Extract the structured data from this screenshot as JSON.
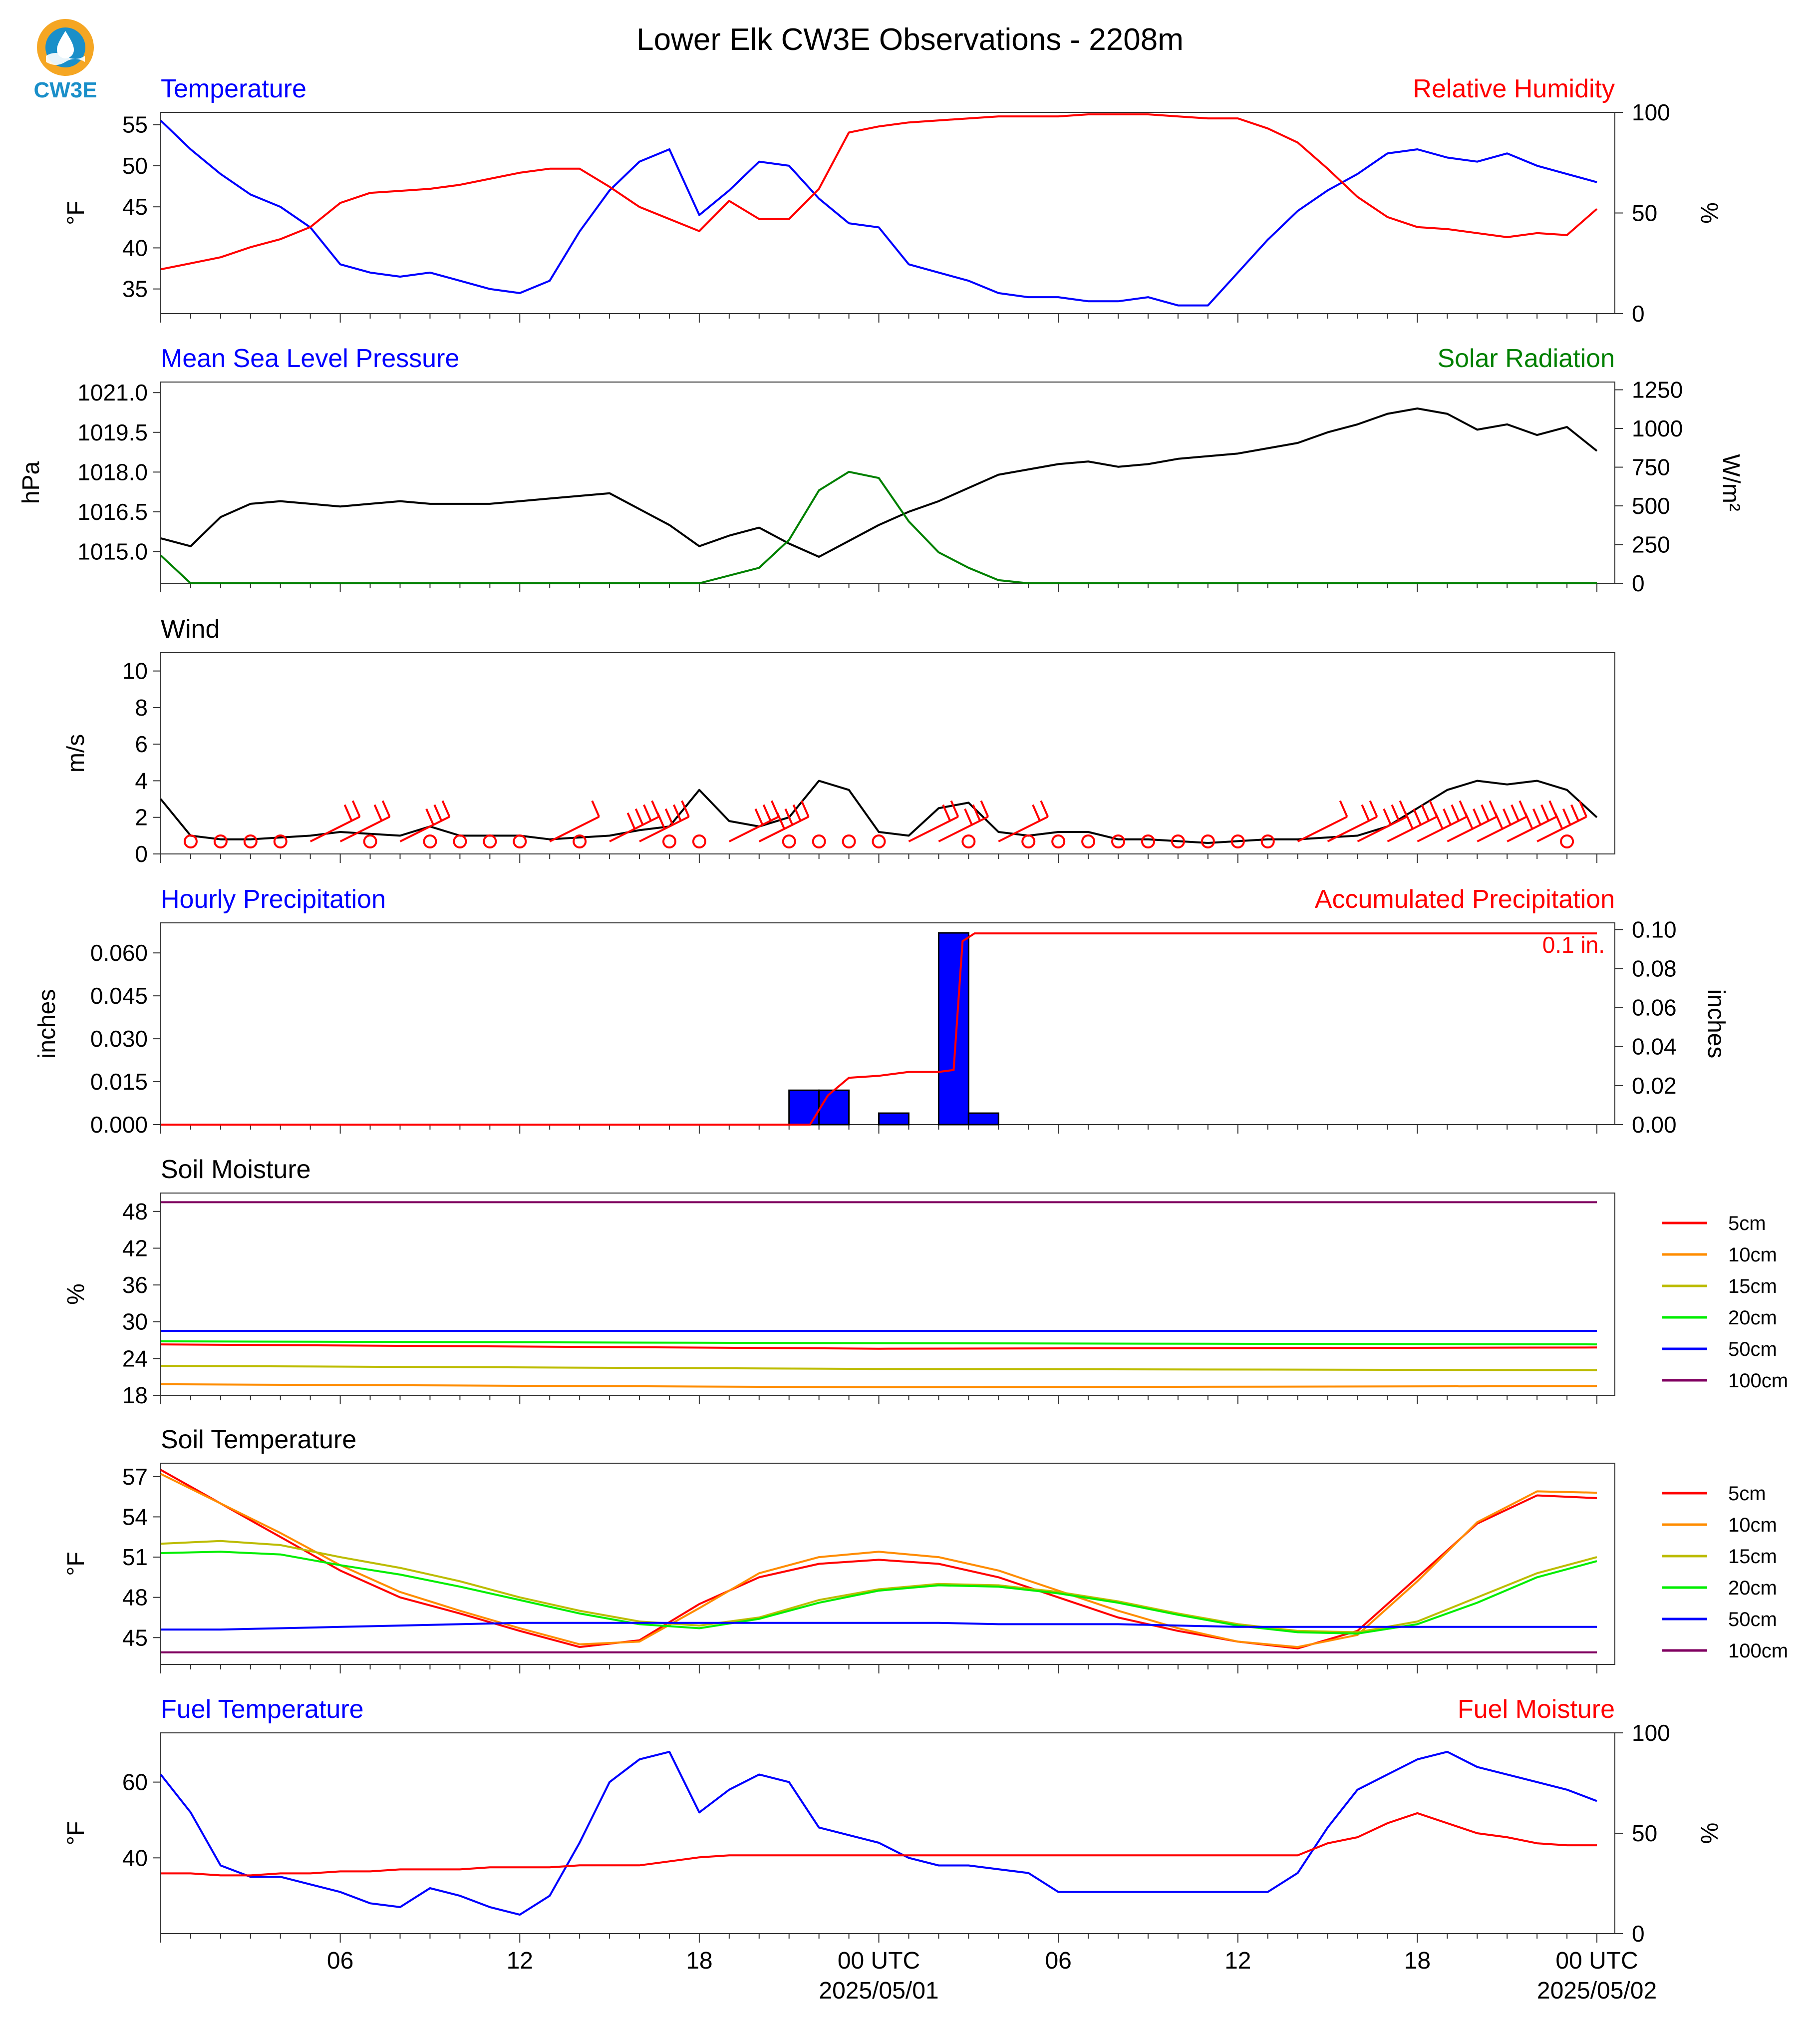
{
  "title": "Lower Elk CW3E Observations - 2208m",
  "logo": {
    "text": "CW3E",
    "color": "#1a8fc9",
    "accent": "#f5a623"
  },
  "time_axis": {
    "ticks": [
      "06",
      "12",
      "18",
      "00 UTC",
      "06",
      "12",
      "18",
      "00 UTC"
    ],
    "dates": [
      "2025/05/01",
      "2025/05/02"
    ]
  },
  "chart_data": [
    {
      "type": "line",
      "panel": "temperature-humidity",
      "left_title": "Temperature",
      "right_title": "Relative Humidity",
      "ylabel": "°F",
      "y2label": "%",
      "ylim": [
        32,
        56.5
      ],
      "y2lim": [
        0,
        100
      ],
      "yticks": [
        "35",
        "40",
        "45",
        "50",
        "55"
      ],
      "y2ticks": [
        "0",
        "50",
        "100"
      ],
      "x_hours": [
        0,
        1,
        2,
        3,
        4,
        5,
        6,
        7,
        8,
        9,
        10,
        11,
        12,
        13,
        14,
        15,
        16,
        17,
        18,
        19,
        20,
        21,
        22,
        23,
        24,
        25,
        26,
        27,
        28,
        29,
        30,
        31,
        32,
        33,
        34,
        35,
        36,
        37,
        38,
        39,
        40,
        41,
        42,
        43,
        44,
        45,
        46,
        47,
        48
      ],
      "series": [
        {
          "name": "Temperature",
          "axis": "left",
          "color": "#0000ff",
          "values": [
            55.5,
            52,
            49,
            46.5,
            45,
            42.5,
            38,
            37,
            36.5,
            37,
            36,
            35,
            34.5,
            36,
            42,
            47,
            50.5,
            52,
            44,
            47,
            50.5,
            50,
            46,
            43,
            42.5,
            38,
            37,
            36,
            34.5,
            34,
            34,
            33.5,
            33.5,
            34,
            33,
            33,
            37,
            41,
            44.5,
            47,
            49,
            51.5,
            52,
            51,
            50.5,
            51.5,
            50,
            49,
            48
          ]
        },
        {
          "name": "Relative Humidity",
          "axis": "right",
          "color": "#ff0000",
          "values": [
            22,
            25,
            28,
            33,
            37,
            43,
            55,
            60,
            61,
            62,
            64,
            67,
            70,
            72,
            72,
            63,
            53,
            47,
            41,
            56,
            47,
            47,
            62,
            90,
            93,
            95,
            96,
            97,
            98,
            98,
            98,
            99,
            99,
            99,
            98,
            97,
            97,
            92,
            85,
            72,
            58,
            48,
            43,
            42,
            40,
            38,
            40,
            39,
            52
          ]
        }
      ]
    },
    {
      "type": "line",
      "panel": "pressure-radiation",
      "left_title": "Mean Sea Level Pressure",
      "right_title": "Solar Radiation",
      "ylabel": "hPa",
      "y2label": "W/m²",
      "ylim": [
        1013.8,
        1021.4
      ],
      "y2lim": [
        0,
        1300
      ],
      "yticks": [
        "1015.0",
        "1016.5",
        "1018.0",
        "1019.5",
        "1021.0"
      ],
      "y2ticks": [
        "0",
        "250",
        "500",
        "750",
        "1000",
        "1250"
      ],
      "x_hours": [
        0,
        1,
        2,
        3,
        4,
        5,
        6,
        7,
        8,
        9,
        10,
        11,
        12,
        13,
        14,
        15,
        16,
        17,
        18,
        19,
        20,
        21,
        22,
        23,
        24,
        25,
        26,
        27,
        28,
        29,
        30,
        31,
        32,
        33,
        34,
        35,
        36,
        37,
        38,
        39,
        40,
        41,
        42,
        43,
        44,
        45,
        46,
        47,
        48
      ],
      "series": [
        {
          "name": "Mean Sea Level Pressure",
          "axis": "left",
          "color": "#000000",
          "values": [
            1015.5,
            1015.2,
            1016.3,
            1016.8,
            1016.9,
            1016.8,
            1016.7,
            1016.8,
            1016.9,
            1016.8,
            1016.8,
            1016.8,
            1016.9,
            1017.0,
            1017.1,
            1017.2,
            1016.6,
            1016.0,
            1015.2,
            1015.6,
            1015.9,
            1015.3,
            1014.8,
            1015.4,
            1016.0,
            1016.5,
            1016.9,
            1017.4,
            1017.9,
            1018.1,
            1018.3,
            1018.4,
            1018.2,
            1018.3,
            1018.5,
            1018.6,
            1018.7,
            1018.9,
            1019.1,
            1019.5,
            1019.8,
            1020.2,
            1020.4,
            1020.2,
            1019.6,
            1019.8,
            1019.4,
            1019.7,
            1018.8
          ]
        },
        {
          "name": "Solar Radiation",
          "axis": "right",
          "color": "#008000",
          "values": [
            180,
            0,
            0,
            0,
            0,
            0,
            0,
            0,
            0,
            0,
            0,
            0,
            0,
            0,
            0,
            0,
            0,
            0,
            0,
            50,
            100,
            280,
            600,
            720,
            680,
            400,
            200,
            100,
            20,
            0,
            0,
            0,
            0,
            0,
            0,
            0,
            0,
            0,
            0,
            0,
            0,
            0,
            0,
            0,
            0,
            0,
            0,
            0,
            0
          ]
        }
      ]
    },
    {
      "type": "line",
      "panel": "wind",
      "left_title": "Wind",
      "ylabel": "m/s",
      "ylim": [
        0,
        11
      ],
      "yticks": [
        "0",
        "2",
        "4",
        "6",
        "8",
        "10"
      ],
      "x_hours": [
        0,
        1,
        2,
        3,
        4,
        5,
        6,
        7,
        8,
        9,
        10,
        11,
        12,
        13,
        14,
        15,
        16,
        17,
        18,
        19,
        20,
        21,
        22,
        23,
        24,
        25,
        26,
        27,
        28,
        29,
        30,
        31,
        32,
        33,
        34,
        35,
        36,
        37,
        38,
        39,
        40,
        41,
        42,
        43,
        44,
        45,
        46,
        47,
        48
      ],
      "series": [
        {
          "name": "Wind Speed",
          "color": "#000000",
          "values": [
            3,
            1,
            0.8,
            0.8,
            0.9,
            1,
            1.2,
            1.1,
            1,
            1.5,
            1,
            1,
            1,
            0.8,
            0.9,
            1,
            1.3,
            1.5,
            3.5,
            1.8,
            1.5,
            2,
            4,
            3.5,
            1.2,
            1,
            2.5,
            2.8,
            1.2,
            1,
            1.2,
            1.2,
            0.8,
            0.8,
            0.7,
            0.6,
            0.7,
            0.8,
            0.8,
            0.9,
            1,
            1.5,
            2.5,
            3.5,
            4,
            3.8,
            4,
            3.5,
            2
          ]
        }
      ],
      "barbs": {
        "color": "#ff0000",
        "x_hours": [
          1,
          2,
          3,
          4,
          5,
          6,
          7,
          8,
          9,
          10,
          11,
          12,
          13,
          14,
          15,
          16,
          17,
          18,
          19,
          20,
          21,
          22,
          23,
          24,
          25,
          26,
          27,
          28,
          29,
          30,
          31,
          32,
          33,
          34,
          35,
          36,
          37,
          38,
          39,
          40,
          41,
          42,
          43,
          44,
          45,
          46,
          47
        ],
        "speeds": [
          0,
          0,
          0,
          0,
          2,
          2,
          0,
          3,
          0,
          0,
          0,
          0,
          1,
          0,
          4,
          5,
          0,
          0,
          3,
          4,
          0,
          0,
          0,
          0,
          2,
          3,
          0,
          2,
          0,
          0,
          0,
          0,
          0,
          0,
          0,
          0,
          0,
          1,
          2,
          3,
          4,
          5,
          5,
          5,
          6,
          5,
          0
        ]
      }
    },
    {
      "type": "bar",
      "panel": "precipitation",
      "left_title": "Hourly Precipitation",
      "right_title": "Accumulated Precipitation",
      "ylabel": "inches",
      "y2label": "inches",
      "ylim": [
        0,
        0.0705
      ],
      "y2lim": [
        0,
        0.1034
      ],
      "yticks": [
        "0.000",
        "0.015",
        "0.030",
        "0.045",
        "0.060"
      ],
      "y2ticks": [
        "0.00",
        "0.02",
        "0.04",
        "0.06",
        "0.08",
        "0.10"
      ],
      "annotation": "0.1 in.",
      "bars": {
        "color": "#0000ff",
        "x_hours": [
          21,
          22,
          24,
          26,
          27
        ],
        "values": [
          0.012,
          0.012,
          0.004,
          0.067,
          0.004
        ]
      },
      "accumulated": {
        "color": "#ff0000",
        "x_hours": [
          0,
          21.7,
          22.3,
          23,
          24,
          25,
          26,
          26.5,
          26.8,
          27.2,
          48
        ],
        "values": [
          0,
          0,
          0.015,
          0.024,
          0.025,
          0.027,
          0.027,
          0.028,
          0.094,
          0.098,
          0.098
        ]
      }
    },
    {
      "type": "line",
      "panel": "soil-moisture",
      "left_title": "Soil Moisture",
      "ylabel": "%",
      "ylim": [
        18,
        51
      ],
      "yticks": [
        "18",
        "24",
        "30",
        "36",
        "42",
        "48"
      ],
      "x_hours": [
        0,
        24,
        48
      ],
      "series": [
        {
          "name": "5cm",
          "color": "#ff0000",
          "values": [
            26.3,
            25.6,
            25.8
          ]
        },
        {
          "name": "10cm",
          "color": "#ff8c00",
          "values": [
            19.8,
            19.3,
            19.5
          ]
        },
        {
          "name": "15cm",
          "color": "#bcbc00",
          "values": [
            22.8,
            22.3,
            22.1
          ]
        },
        {
          "name": "20cm",
          "color": "#00ee00",
          "values": [
            26.8,
            26.5,
            26.3
          ]
        },
        {
          "name": "50cm",
          "color": "#0000ff",
          "values": [
            28.5,
            28.5,
            28.5
          ]
        },
        {
          "name": "100cm",
          "color": "#800060",
          "values": [
            49.5,
            49.5,
            49.5
          ]
        }
      ]
    },
    {
      "type": "line",
      "panel": "soil-temperature",
      "left_title": "Soil Temperature",
      "ylabel": "°F",
      "ylim": [
        43,
        58
      ],
      "yticks": [
        "45",
        "48",
        "51",
        "54",
        "57"
      ],
      "x_hours": [
        0,
        2,
        4,
        6,
        8,
        10,
        12,
        14,
        16,
        18,
        20,
        22,
        24,
        26,
        28,
        30,
        32,
        34,
        36,
        38,
        40,
        42,
        44,
        46,
        48
      ],
      "series": [
        {
          "name": "5cm",
          "color": "#ff0000",
          "values": [
            57.5,
            55,
            52.5,
            50,
            48,
            46.8,
            45.5,
            44.3,
            44.8,
            47.5,
            49.5,
            50.5,
            50.8,
            50.5,
            49.5,
            48,
            46.5,
            45.5,
            44.7,
            44.2,
            45.5,
            49.5,
            53.5,
            55.6,
            55.4
          ]
        },
        {
          "name": "10cm",
          "color": "#ff8c00",
          "values": [
            57.2,
            55,
            52.8,
            50.4,
            48.4,
            47,
            45.7,
            44.5,
            44.7,
            47.2,
            49.8,
            51,
            51.4,
            51,
            50,
            48.5,
            47,
            45.7,
            44.7,
            44.3,
            45.2,
            49.2,
            53.6,
            55.9,
            55.8
          ]
        },
        {
          "name": "15cm",
          "color": "#bcbc00",
          "values": [
            52,
            52.2,
            51.9,
            51,
            50.2,
            49.2,
            48,
            47,
            46.2,
            45.9,
            46.5,
            47.8,
            48.6,
            49,
            48.9,
            48.4,
            47.7,
            46.8,
            46,
            45.5,
            45.4,
            46.2,
            48,
            49.8,
            51
          ]
        },
        {
          "name": "20cm",
          "color": "#00ee00",
          "values": [
            51.3,
            51.4,
            51.2,
            50.4,
            49.7,
            48.8,
            47.8,
            46.8,
            46,
            45.7,
            46.4,
            47.6,
            48.5,
            48.9,
            48.8,
            48.3,
            47.6,
            46.7,
            45.9,
            45.4,
            45.3,
            46,
            47.6,
            49.5,
            50.7
          ]
        },
        {
          "name": "50cm",
          "color": "#0000ff",
          "values": [
            45.6,
            45.6,
            45.7,
            45.8,
            45.9,
            46,
            46.1,
            46.1,
            46.1,
            46.1,
            46.1,
            46.1,
            46.1,
            46.1,
            46,
            46,
            46,
            45.9,
            45.8,
            45.8,
            45.8,
            45.8,
            45.8,
            45.8,
            45.8
          ]
        },
        {
          "name": "100cm",
          "color": "#800060",
          "values": [
            43.9,
            43.9,
            43.9,
            43.9,
            43.9,
            43.9,
            43.9,
            43.9,
            43.9,
            43.9,
            43.9,
            43.9,
            43.9,
            43.9,
            43.9,
            43.9,
            43.9,
            43.9,
            43.9,
            43.9,
            43.9,
            43.9,
            43.9,
            43.9,
            43.9
          ]
        }
      ]
    },
    {
      "type": "line",
      "panel": "fuel",
      "left_title": "Fuel Temperature",
      "right_title": "Fuel Moisture",
      "ylabel": "°F",
      "y2label": "%",
      "ylim": [
        20,
        73
      ],
      "y2lim": [
        0,
        100
      ],
      "yticks": [
        "40",
        "60"
      ],
      "y2ticks": [
        "0",
        "50",
        "100"
      ],
      "x_hours": [
        0,
        1,
        2,
        3,
        4,
        5,
        6,
        7,
        8,
        9,
        10,
        11,
        12,
        13,
        14,
        15,
        16,
        17,
        18,
        19,
        20,
        21,
        22,
        23,
        24,
        25,
        26,
        27,
        28,
        29,
        30,
        31,
        32,
        33,
        34,
        35,
        36,
        37,
        38,
        39,
        40,
        41,
        42,
        43,
        44,
        45,
        46,
        47,
        48
      ],
      "series": [
        {
          "name": "Fuel Temperature",
          "axis": "left",
          "color": "#0000ff",
          "values": [
            62,
            52,
            38,
            35,
            35,
            33,
            31,
            28,
            27,
            32,
            30,
            27,
            25,
            30,
            44,
            60,
            66,
            68,
            52,
            58,
            62,
            60,
            48,
            46,
            44,
            40,
            38,
            38,
            37,
            36,
            31,
            31,
            31,
            31,
            31,
            31,
            31,
            31,
            36,
            48,
            58,
            62,
            66,
            68,
            64,
            62,
            60,
            58,
            55
          ]
        },
        {
          "name": "Fuel Moisture",
          "axis": "right",
          "color": "#ff0000",
          "values": [
            30,
            30,
            29,
            29,
            30,
            30,
            31,
            31,
            32,
            32,
            32,
            33,
            33,
            33,
            34,
            34,
            34,
            36,
            38,
            39,
            39,
            39,
            39,
            39,
            39,
            39,
            39,
            39,
            39,
            39,
            39,
            39,
            39,
            39,
            39,
            39,
            39,
            39,
            39,
            45,
            48,
            55,
            60,
            55,
            50,
            48,
            45,
            44,
            44
          ]
        }
      ]
    }
  ],
  "legend_soil_moisture": [
    "5cm",
    "10cm",
    "15cm",
    "20cm",
    "50cm",
    "100cm"
  ],
  "legend_soil_temperature": [
    "5cm",
    "10cm",
    "15cm",
    "20cm",
    "50cm",
    "100cm"
  ]
}
